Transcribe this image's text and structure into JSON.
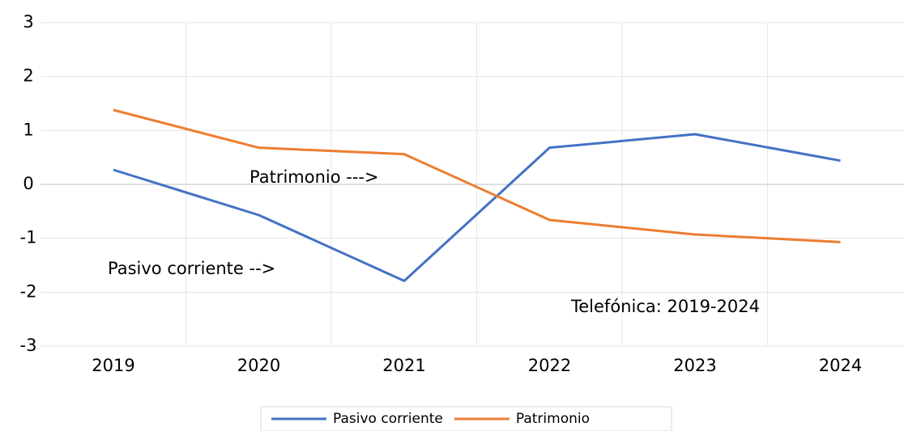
{
  "chart_data": {
    "type": "line",
    "categories": [
      "2019",
      "2020",
      "2021",
      "2022",
      "2023",
      "2024"
    ],
    "series": [
      {
        "name": "Pasivo corriente",
        "color": "#4472c4",
        "values": [
          0.27,
          -0.57,
          -1.79,
          0.68,
          0.93,
          0.44
        ]
      },
      {
        "name": "Patrimonio",
        "color": "#ed7d31",
        "values": [
          1.38,
          0.68,
          0.56,
          -0.66,
          -0.93,
          -1.07
        ]
      }
    ],
    "ylim": [
      -3,
      3
    ],
    "yticks": [
      -3,
      -2,
      -1,
      0,
      1,
      2,
      3
    ],
    "grid": true,
    "annotations": [
      "Patrimonio --->",
      "Pasivo corriente -->",
      "Telefónica: 2019-2024"
    ],
    "legend": "bottom"
  }
}
